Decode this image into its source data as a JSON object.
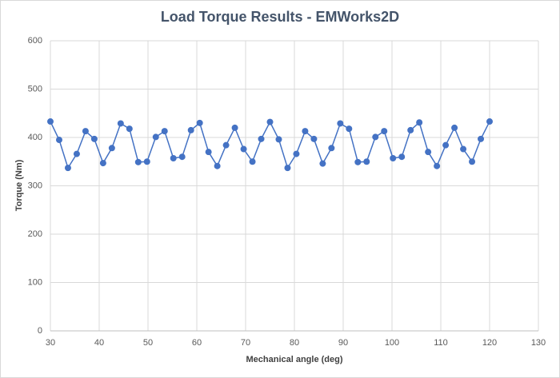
{
  "chart_data": {
    "type": "line",
    "title": "Load Torque Results - EMWorks2D",
    "x_label": "Mechanical angle (deg)",
    "y_label": "Torque (Nm)",
    "x": [
      30,
      31.8,
      33.6,
      35.4,
      37.2,
      39,
      40.8,
      42.6,
      44.4,
      46.2,
      48,
      49.8,
      51.6,
      53.4,
      55.2,
      57,
      58.8,
      60.6,
      62.4,
      64.2,
      66,
      67.8,
      69.6,
      71.4,
      73.2,
      75,
      76.8,
      78.6,
      80.4,
      82.2,
      84,
      85.8,
      87.6,
      89.4,
      91.2,
      93,
      94.8,
      96.6,
      98.4,
      100.2,
      102,
      103.8,
      105.6,
      107.4,
      109.2,
      111,
      112.8,
      114.6,
      116.4,
      118.2,
      120
    ],
    "series": [
      {
        "color": "#4472c4",
        "values": [
          433,
          395,
          337,
          366,
          413,
          397,
          347,
          378,
          429,
          418,
          349,
          350,
          401,
          413,
          357,
          360,
          415,
          430,
          370,
          341,
          384,
          420,
          376,
          350,
          397,
          432,
          396,
          337,
          366,
          413,
          397,
          346,
          378,
          429,
          418,
          349,
          350,
          401,
          413,
          357,
          360,
          415,
          431,
          370,
          341,
          384,
          420,
          376,
          350,
          397,
          433
        ]
      }
    ],
    "xlim": [
      30,
      130
    ],
    "xticks": [
      30,
      40,
      50,
      60,
      70,
      80,
      90,
      100,
      110,
      120,
      130
    ],
    "ylim": [
      0,
      600
    ],
    "yticks": [
      0,
      100,
      200,
      300,
      400,
      500,
      600
    ],
    "grid": true,
    "markers": true
  }
}
